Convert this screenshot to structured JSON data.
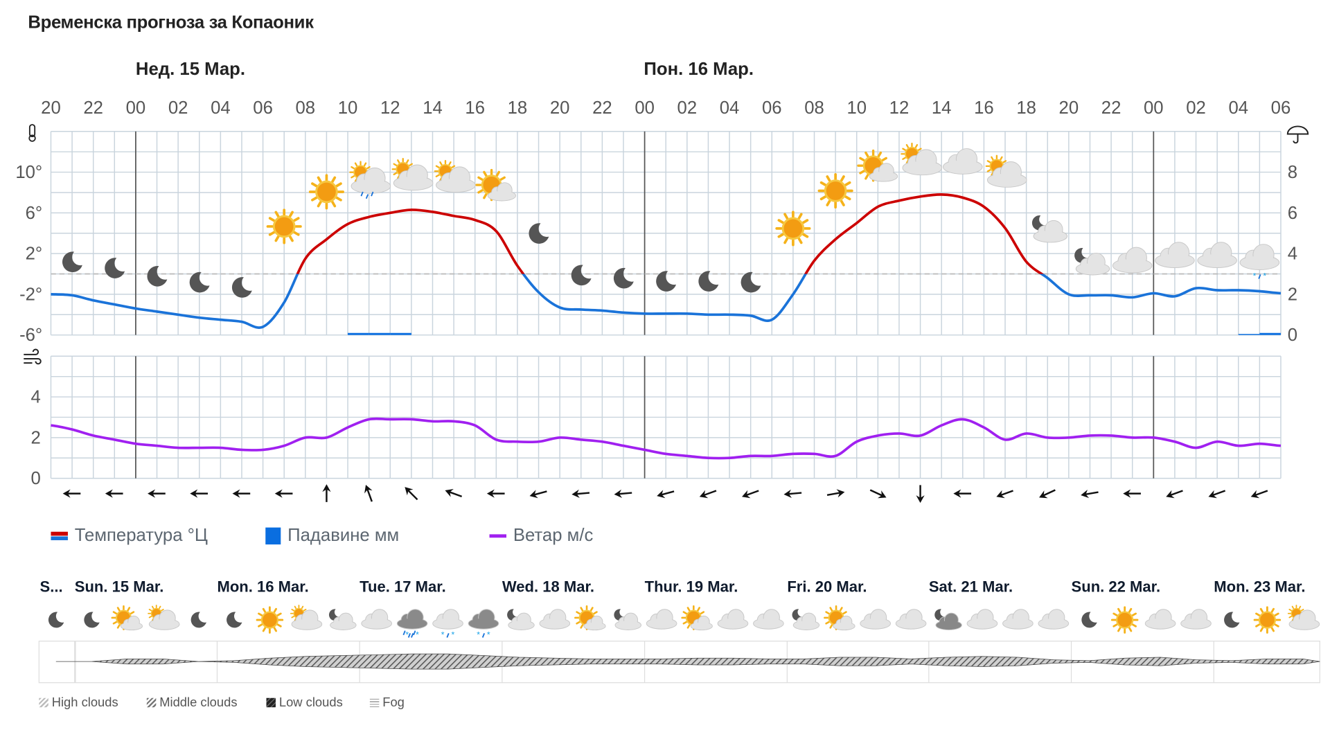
{
  "title": "Временска прогноза за Копаоник",
  "day_headers": [
    "Нед. 15 Мар.",
    "Пон. 16 Мар."
  ],
  "hour_labels": [
    "20",
    "22",
    "00",
    "02",
    "04",
    "06",
    "08",
    "10",
    "12",
    "14",
    "16",
    "18",
    "20",
    "22",
    "00",
    "02",
    "04",
    "06",
    "08",
    "10",
    "12",
    "14",
    "16",
    "18",
    "20",
    "22",
    "00",
    "02",
    "04",
    "06"
  ],
  "colors": {
    "temp_warm": "#cc0000",
    "temp_cold": "#1a73d9",
    "precip": "#0a6ee0",
    "wind": "#a020f0",
    "grid": "#c9d4dd"
  },
  "chart_data": [
    {
      "type": "line",
      "title": "",
      "x_unit": "hour",
      "x_start": "20:00",
      "temperature_axis": {
        "ticks": [
          "10°",
          "6°",
          "2°",
          "-2°",
          "-6°"
        ],
        "ylim": [
          -6,
          14
        ]
      },
      "precip_axis": {
        "ticks": [
          "8",
          "6",
          "4",
          "2",
          "0"
        ],
        "ylim": [
          0,
          10
        ]
      },
      "temperature_c": [
        -2.0,
        -2.1,
        -2.6,
        -3.0,
        -3.4,
        -3.7,
        -4.0,
        -4.3,
        -4.5,
        -4.7,
        -5.2,
        -2.8,
        1.5,
        3.4,
        4.9,
        5.6,
        6.0,
        6.3,
        6.1,
        5.7,
        5.3,
        4.2,
        0.8,
        -1.8,
        -3.3,
        -3.5,
        -3.6,
        -3.8,
        -3.9,
        -3.9,
        -3.9,
        -4.0,
        -4.0,
        -4.1,
        -4.5,
        -2.0,
        1.3,
        3.4,
        5.0,
        6.6,
        7.2,
        7.6,
        7.8,
        7.5,
        6.6,
        4.5,
        1.2,
        -0.4,
        -2.0,
        -2.1,
        -2.1,
        -2.3,
        -1.9,
        -2.2,
        -1.4,
        -1.6,
        -1.6,
        -1.7,
        -1.9
      ],
      "precip_mm": [
        0,
        0,
        0,
        0,
        0,
        0,
        0,
        0,
        0,
        0,
        0,
        0,
        0,
        0,
        0.1,
        0.1,
        0.1,
        0,
        0,
        0,
        0,
        0,
        0,
        0,
        0,
        0,
        0,
        0,
        0,
        0,
        0,
        0,
        0,
        0,
        0,
        0,
        0,
        0,
        0,
        0,
        0,
        0,
        0,
        0,
        0,
        0,
        0,
        0,
        0,
        0,
        0,
        0,
        0,
        0,
        0,
        0,
        0.05,
        0.1,
        0
      ],
      "weather_icons": [
        "moon",
        "moon",
        "moon",
        "moon",
        "moon",
        "sun",
        "sun",
        "sun-cloud-rain",
        "sun-cloud",
        "sun-cloud",
        "sun-cloud-light",
        "moon",
        "moon",
        "moon",
        "moon",
        "moon",
        "moon",
        "sun",
        "sun",
        "sun-cloud-light",
        "sun-cloud",
        "cloud",
        "sun-cloud",
        "moon-cloud",
        "moon-cloud",
        "cloud",
        "cloud",
        "cloud",
        "cloud-snow"
      ]
    },
    {
      "type": "line",
      "title": "",
      "wind_axis": {
        "ticks": [
          "4",
          "2",
          "0"
        ],
        "ylim": [
          0,
          6
        ]
      },
      "wind_ms": [
        2.6,
        2.4,
        2.1,
        1.9,
        1.7,
        1.6,
        1.5,
        1.5,
        1.5,
        1.4,
        1.4,
        1.6,
        2.0,
        2.0,
        2.5,
        2.9,
        2.9,
        2.9,
        2.8,
        2.8,
        2.6,
        1.9,
        1.8,
        1.8,
        2.0,
        1.9,
        1.8,
        1.6,
        1.4,
        1.2,
        1.1,
        1.0,
        1.0,
        1.1,
        1.1,
        1.2,
        1.2,
        1.1,
        1.8,
        2.1,
        2.2,
        2.1,
        2.6,
        2.9,
        2.5,
        1.9,
        2.2,
        2.0,
        2.0,
        2.1,
        2.1,
        2.0,
        2.0,
        1.8,
        1.5,
        1.8,
        1.6,
        1.7,
        1.6
      ],
      "wind_direction_deg": [
        270,
        270,
        270,
        270,
        270,
        270,
        0,
        340,
        315,
        290,
        270,
        255,
        265,
        265,
        255,
        250,
        250,
        265,
        80,
        115,
        180,
        270,
        250,
        245,
        260,
        270,
        250,
        250,
        250
      ]
    }
  ],
  "legend": [
    {
      "label": "Температура °Ц"
    },
    {
      "label": "Падавине мм"
    },
    {
      "label": "Ветар м/с"
    }
  ],
  "meteogram": {
    "days": [
      "S...",
      "Sun. 15 Mar.",
      "Mon. 16 Mar.",
      "Tue. 17 Mar.",
      "Wed. 18 Mar.",
      "Thur. 19 Mar.",
      "Fri. 20 Mar.",
      "Sat. 21 Mar.",
      "Sun. 22 Mar.",
      "Mon. 23 Mar."
    ],
    "icons": [
      "moon",
      "moon",
      "sun-cloud-light",
      "sun-cloud",
      "moon",
      "moon",
      "sun",
      "sun-cloud",
      "moon-cloud",
      "cloud",
      "cloud-rain-snow",
      "cloud-snow",
      "cloud-snow-dark",
      "moon-cloud",
      "cloud",
      "sun-cloud-light",
      "moon-cloud",
      "cloud",
      "sun-cloud-light",
      "cloud",
      "cloud",
      "moon-cloud",
      "sun-cloud-light",
      "cloud",
      "cloud",
      "moon-cloud-dark",
      "cloud",
      "cloud",
      "cloud",
      "moon",
      "sun",
      "cloud",
      "cloud",
      "moon",
      "sun",
      "sun-cloud"
    ],
    "cloud_cover": [
      0,
      0,
      0.3,
      0.3,
      0,
      0.1,
      0.4,
      0.6,
      0.7,
      0.8,
      0.9,
      0.9,
      0.7,
      0.5,
      0.4,
      0.3,
      0.3,
      0.3,
      0.4,
      0.4,
      0.3,
      0.3,
      0.5,
      0.5,
      0.3,
      0.5,
      0.6,
      0.5,
      0.2,
      0.1,
      0.4,
      0.5,
      0.2,
      0.1,
      0.3,
      0.3
    ],
    "legend": [
      "High clouds",
      "Middle clouds",
      "Low clouds",
      "Fog"
    ]
  }
}
